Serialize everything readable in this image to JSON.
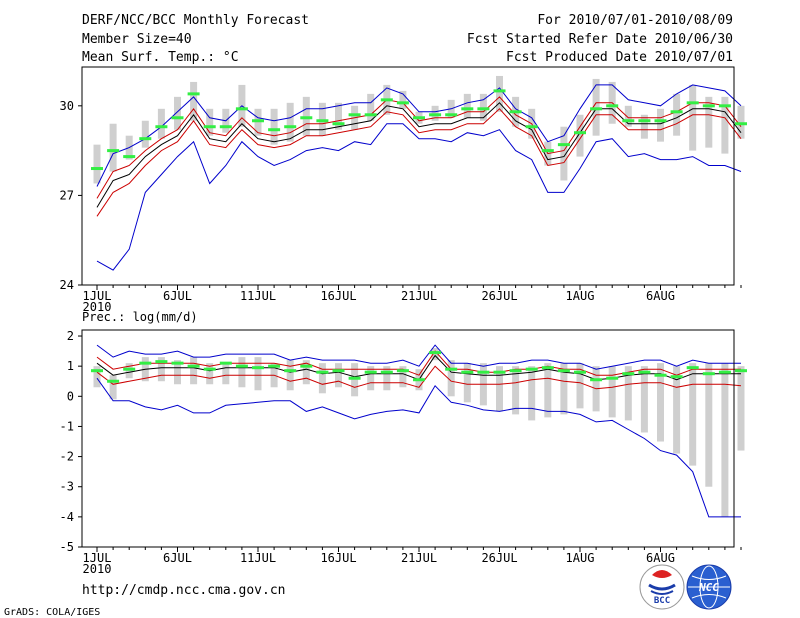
{
  "header": {
    "title": "DERF/NCC/BCC Monthly Forecast",
    "member": "Member Size=40",
    "variable": "Mean Surf. Temp.: °C",
    "period": "For 2010/07/01-2010/08/09",
    "started": "Fcst Started Refer Date 2010/06/30",
    "produced": "Fcst Produced Date 2010/07/01"
  },
  "footer": {
    "url": "http://cmdp.ncc.cma.gov.cn",
    "credit": "GrADS: COLA/IGES",
    "logo_bcc": "BCC",
    "logo_ncc": "NCC"
  },
  "colors": {
    "bar": "#cfcfcf",
    "green": "#33ee44",
    "envelope": "#0000cc",
    "spread": "#cc0000",
    "mean": "#000000"
  },
  "chart_data": [
    {
      "type": "line",
      "title": "Mean Surf. Temp.: °C",
      "x_start": "2010-07-01",
      "x_end": "2010-08-09",
      "x_tick_labels": [
        "1JUL",
        "6JUL",
        "11JUL",
        "16JUL",
        "21JUL",
        "26JUL",
        "1AUG",
        "6AUG"
      ],
      "x_year_label": "2010",
      "ylim": [
        24,
        31.3
      ],
      "y_ticks": [
        24,
        27,
        30
      ],
      "bars_low": [
        27.4,
        27.8,
        28.2,
        28.6,
        28.9,
        29.2,
        29.5,
        29.0,
        29.1,
        29.3,
        29.0,
        28.7,
        28.8,
        29.0,
        29.0,
        29.2,
        29.2,
        29.5,
        29.7,
        29.9,
        29.4,
        29.5,
        29.6,
        29.6,
        29.5,
        29.8,
        29.3,
        28.9,
        28.0,
        27.5,
        28.3,
        29.0,
        29.4,
        29.3,
        28.9,
        28.8,
        29.0,
        28.5,
        28.6,
        28.4,
        28.9
      ],
      "bars_high": [
        28.7,
        29.4,
        29.0,
        29.5,
        29.9,
        30.3,
        30.8,
        29.9,
        29.9,
        30.7,
        29.9,
        29.9,
        30.1,
        30.3,
        30.1,
        30.1,
        30.0,
        30.4,
        30.7,
        30.5,
        29.8,
        30.0,
        30.2,
        30.4,
        30.4,
        31.0,
        30.3,
        29.9,
        28.8,
        29.3,
        29.7,
        30.9,
        30.8,
        30.0,
        29.7,
        29.9,
        30.4,
        30.7,
        30.3,
        30.3,
        30.0
      ],
      "series": [
        {
          "name": "green-marker",
          "values": [
            27.9,
            28.5,
            28.3,
            28.9,
            29.3,
            29.6,
            30.4,
            29.3,
            29.3,
            29.9,
            29.5,
            29.2,
            29.3,
            29.6,
            29.5,
            29.4,
            29.7,
            29.7,
            30.2,
            30.1,
            29.6,
            29.7,
            29.7,
            29.9,
            29.9,
            30.5,
            29.8,
            29.3,
            28.5,
            28.7,
            29.1,
            29.9,
            30.0,
            29.5,
            29.5,
            29.5,
            29.8,
            30.1,
            30.0,
            30.0,
            29.4
          ]
        },
        {
          "name": "blue-upper",
          "values": [
            27.3,
            28.4,
            28.6,
            28.9,
            29.3,
            29.8,
            30.3,
            29.6,
            29.5,
            30.0,
            29.6,
            29.5,
            29.6,
            29.9,
            29.9,
            30.0,
            30.1,
            30.1,
            30.6,
            30.4,
            29.8,
            29.8,
            29.9,
            30.1,
            30.2,
            30.6,
            29.9,
            29.6,
            28.8,
            29.0,
            29.9,
            30.7,
            30.7,
            30.2,
            30.1,
            30.0,
            30.4,
            30.7,
            30.6,
            30.5,
            30.0
          ]
        },
        {
          "name": "red-upper",
          "values": [
            26.9,
            27.8,
            28.0,
            28.5,
            28.9,
            29.2,
            29.9,
            29.1,
            29.0,
            29.6,
            29.1,
            29.0,
            29.1,
            29.4,
            29.4,
            29.5,
            29.6,
            29.7,
            30.2,
            30.1,
            29.5,
            29.6,
            29.6,
            29.8,
            29.8,
            30.3,
            29.7,
            29.4,
            28.4,
            28.5,
            29.3,
            30.1,
            30.1,
            29.6,
            29.6,
            29.6,
            29.8,
            30.1,
            30.1,
            30.0,
            29.3
          ]
        },
        {
          "name": "black-mean",
          "values": [
            26.6,
            27.5,
            27.7,
            28.3,
            28.7,
            29.0,
            29.7,
            28.9,
            28.8,
            29.4,
            28.9,
            28.8,
            28.9,
            29.2,
            29.2,
            29.3,
            29.4,
            29.5,
            30.0,
            29.9,
            29.3,
            29.4,
            29.4,
            29.6,
            29.6,
            30.1,
            29.5,
            29.2,
            28.2,
            28.3,
            29.1,
            29.9,
            29.9,
            29.4,
            29.4,
            29.4,
            29.6,
            29.9,
            29.9,
            29.8,
            29.1
          ]
        },
        {
          "name": "red-lower",
          "values": [
            26.3,
            27.1,
            27.4,
            28.0,
            28.5,
            28.8,
            29.5,
            28.7,
            28.6,
            29.2,
            28.7,
            28.6,
            28.7,
            29.0,
            29.0,
            29.1,
            29.2,
            29.3,
            29.8,
            29.7,
            29.1,
            29.2,
            29.2,
            29.4,
            29.4,
            29.9,
            29.3,
            29.0,
            28.0,
            28.1,
            28.9,
            29.7,
            29.7,
            29.2,
            29.2,
            29.2,
            29.4,
            29.7,
            29.7,
            29.6,
            28.9
          ]
        },
        {
          "name": "blue-lower",
          "values": [
            24.8,
            24.5,
            25.2,
            27.1,
            27.7,
            28.3,
            28.8,
            27.4,
            28.0,
            28.8,
            28.3,
            28.0,
            28.2,
            28.5,
            28.6,
            28.5,
            28.8,
            28.7,
            29.4,
            29.4,
            28.9,
            28.9,
            28.8,
            29.1,
            29.0,
            29.2,
            28.5,
            28.2,
            27.1,
            27.1,
            27.9,
            28.8,
            28.9,
            28.3,
            28.4,
            28.2,
            28.2,
            28.3,
            28.0,
            28.0,
            27.8
          ]
        }
      ]
    },
    {
      "type": "line",
      "title": "Prec.: log(mm/d)",
      "x_start": "2010-07-01",
      "x_end": "2010-08-09",
      "x_tick_labels": [
        "1JUL",
        "6JUL",
        "11JUL",
        "16JUL",
        "21JUL",
        "26JUL",
        "1AUG",
        "6AUG"
      ],
      "x_year_label": "2010",
      "ylim": [
        -5,
        2.2
      ],
      "y_ticks": [
        -5,
        -4,
        -3,
        -2,
        -1,
        0,
        1,
        2
      ],
      "bars_low": [
        0.3,
        -0.1,
        0.6,
        0.5,
        0.5,
        0.4,
        0.4,
        0.4,
        0.4,
        0.3,
        0.2,
        0.3,
        0.2,
        0.4,
        0.1,
        0.3,
        0.0,
        0.2,
        0.2,
        0.3,
        0.2,
        1.2,
        0.0,
        -0.2,
        -0.3,
        -0.5,
        -0.6,
        -0.8,
        -0.7,
        -0.6,
        -0.4,
        -0.5,
        -0.7,
        -0.8,
        -1.2,
        -1.5,
        -1.9,
        -2.3,
        -3.0,
        -4.0,
        -1.8
      ],
      "bars_high": [
        1.0,
        0.7,
        1.1,
        1.3,
        1.3,
        1.2,
        1.3,
        1.1,
        1.1,
        1.3,
        1.3,
        1.1,
        1.2,
        1.2,
        1.1,
        1.1,
        1.1,
        1.0,
        1.0,
        1.0,
        0.9,
        1.6,
        1.2,
        1.1,
        1.1,
        1.0,
        1.0,
        1.0,
        1.1,
        1.1,
        1.1,
        1.0,
        1.0,
        1.0,
        1.0,
        1.1,
        1.0,
        1.1,
        1.1,
        1.1,
        1.0
      ],
      "series": [
        {
          "name": "green-marker",
          "values": [
            0.85,
            0.5,
            0.9,
            1.1,
            1.15,
            1.1,
            1.0,
            0.9,
            1.1,
            1.0,
            0.95,
            1.0,
            0.85,
            1.0,
            0.8,
            0.85,
            0.6,
            0.8,
            0.8,
            0.85,
            0.55,
            1.45,
            0.9,
            0.8,
            0.8,
            0.8,
            0.85,
            0.9,
            0.95,
            0.85,
            0.8,
            0.55,
            0.6,
            0.75,
            0.8,
            0.7,
            0.65,
            0.95,
            0.75,
            0.8,
            0.85
          ]
        },
        {
          "name": "blue-upper",
          "values": [
            1.7,
            1.3,
            1.5,
            1.4,
            1.4,
            1.5,
            1.3,
            1.3,
            1.4,
            1.4,
            1.4,
            1.4,
            1.2,
            1.3,
            1.2,
            1.2,
            1.2,
            1.1,
            1.1,
            1.2,
            1.0,
            1.7,
            1.1,
            1.1,
            1.0,
            1.1,
            1.1,
            1.2,
            1.2,
            1.1,
            1.1,
            0.9,
            1.0,
            1.1,
            1.2,
            1.2,
            1.0,
            1.2,
            1.1,
            1.1,
            1.1
          ]
        },
        {
          "name": "red-upper",
          "values": [
            1.3,
            0.9,
            1.0,
            1.1,
            1.1,
            1.1,
            1.1,
            1.0,
            1.1,
            1.1,
            1.1,
            1.1,
            1.0,
            1.1,
            0.9,
            0.9,
            0.9,
            0.9,
            0.9,
            0.9,
            0.7,
            1.5,
            0.9,
            0.9,
            0.8,
            0.8,
            0.9,
            0.9,
            1.0,
            0.9,
            0.9,
            0.7,
            0.7,
            0.8,
            0.9,
            0.9,
            0.7,
            0.9,
            0.9,
            0.9,
            0.9
          ]
        },
        {
          "name": "black-mean",
          "values": [
            1.1,
            0.7,
            0.8,
            0.9,
            0.95,
            0.95,
            0.95,
            0.85,
            0.95,
            0.95,
            0.95,
            0.95,
            0.8,
            0.9,
            0.75,
            0.8,
            0.65,
            0.75,
            0.75,
            0.75,
            0.55,
            1.35,
            0.8,
            0.75,
            0.7,
            0.7,
            0.75,
            0.8,
            0.9,
            0.8,
            0.75,
            0.55,
            0.6,
            0.7,
            0.75,
            0.75,
            0.55,
            0.75,
            0.75,
            0.75,
            0.75
          ]
        },
        {
          "name": "red-lower",
          "values": [
            0.8,
            0.4,
            0.5,
            0.6,
            0.7,
            0.7,
            0.7,
            0.6,
            0.7,
            0.7,
            0.7,
            0.7,
            0.5,
            0.6,
            0.4,
            0.5,
            0.3,
            0.45,
            0.45,
            0.45,
            0.3,
            1.0,
            0.5,
            0.4,
            0.4,
            0.4,
            0.45,
            0.55,
            0.6,
            0.5,
            0.45,
            0.25,
            0.3,
            0.4,
            0.45,
            0.45,
            0.3,
            0.4,
            0.4,
            0.4,
            0.35
          ]
        },
        {
          "name": "blue-lower",
          "values": [
            0.6,
            -0.15,
            -0.15,
            -0.35,
            -0.45,
            -0.3,
            -0.55,
            -0.55,
            -0.3,
            -0.25,
            -0.2,
            -0.15,
            -0.15,
            -0.5,
            -0.35,
            -0.55,
            -0.75,
            -0.6,
            -0.5,
            -0.45,
            -0.55,
            0.35,
            -0.2,
            -0.3,
            -0.45,
            -0.5,
            -0.4,
            -0.4,
            -0.5,
            -0.5,
            -0.6,
            -0.85,
            -0.8,
            -1.1,
            -1.4,
            -1.8,
            -1.95,
            -2.5,
            -4.0,
            -4.0,
            -4.0
          ]
        }
      ]
    }
  ]
}
